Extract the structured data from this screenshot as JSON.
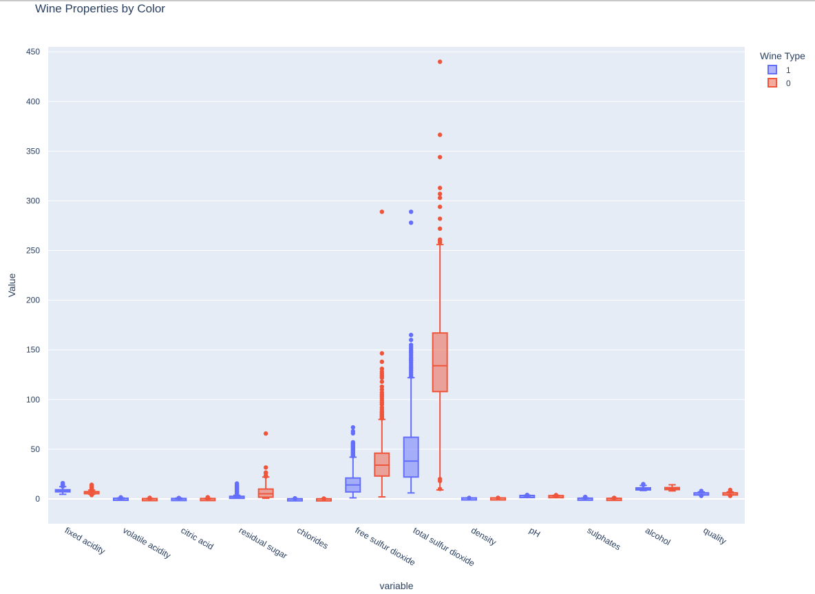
{
  "chart_data": {
    "type": "box",
    "title": "Wine Properties by Color",
    "xlabel": "variable",
    "ylabel": "Value",
    "ylim": [
      -25,
      455
    ],
    "yticks": [
      0,
      50,
      100,
      150,
      200,
      250,
      300,
      350,
      400,
      450
    ],
    "grid": true,
    "legend": {
      "title": "Wine Type",
      "placement": "top-right"
    },
    "categories": [
      "fixed acidity",
      "volatile acidity",
      "citric acid",
      "residual sugar",
      "chlorides",
      "free sulfur dioxide",
      "total sulfur dioxide",
      "density",
      "pH",
      "sulphates",
      "alcohol",
      "quality"
    ],
    "series": [
      {
        "name": "1",
        "color": "#636efa",
        "boxes": [
          {
            "low": 4.6,
            "q1": 7.1,
            "median": 7.9,
            "q3": 9.2,
            "high": 12.3,
            "outliers": [
              12.5,
              13,
              13.5,
              14,
              15,
              15.9
            ]
          },
          {
            "low": 0.12,
            "q1": 0.39,
            "median": 0.52,
            "q3": 0.64,
            "high": 1.0,
            "outliers": [
              1.2,
              1.6
            ]
          },
          {
            "low": 0,
            "q1": 0.09,
            "median": 0.26,
            "q3": 0.42,
            "high": 0.79,
            "outliers": [
              1.0
            ]
          },
          {
            "low": 0.9,
            "q1": 1.9,
            "median": 2.2,
            "q3": 2.6,
            "high": 3.6,
            "outliers": [
              4,
              5,
              6,
              7,
              8,
              9,
              10,
              11,
              12,
              13,
              14,
              15.5
            ]
          },
          {
            "low": 0.04,
            "q1": 0.07,
            "median": 0.08,
            "q3": 0.09,
            "high": 0.12,
            "outliers": [
              0.3,
              0.45,
              0.61
            ]
          },
          {
            "low": 1,
            "q1": 7,
            "median": 14,
            "q3": 21,
            "high": 42,
            "outliers": [
              43,
              44,
              45,
              46,
              47,
              48,
              49,
              50,
              51,
              52,
              53,
              54,
              55,
              56,
              57,
              66,
              68,
              72
            ]
          },
          {
            "low": 6,
            "q1": 22,
            "median": 38,
            "q3": 62,
            "high": 122,
            "outliers": [
              123,
              125,
              127,
              129,
              131,
              133,
              135,
              137,
              139,
              141,
              143,
              145,
              147,
              149,
              151,
              153,
              155,
              160,
              165,
              278,
              289
            ]
          },
          {
            "low": 0.99,
            "q1": 0.996,
            "median": 0.997,
            "q3": 0.998,
            "high": 1.0,
            "outliers": [
              1.003
            ]
          },
          {
            "low": 2.9,
            "q1": 3.2,
            "median": 3.31,
            "q3": 3.4,
            "high": 3.7,
            "outliers": [
              2.74,
              4.01
            ]
          },
          {
            "low": 0.33,
            "q1": 0.55,
            "median": 0.62,
            "q3": 0.73,
            "high": 1.0,
            "outliers": [
              1.2,
              1.5,
              2.0
            ]
          },
          {
            "low": 8.4,
            "q1": 9.5,
            "median": 10.2,
            "q3": 11.1,
            "high": 13.5,
            "outliers": [
              14,
              14.9
            ]
          },
          {
            "low": 4,
            "q1": 5,
            "median": 6,
            "q3": 6,
            "high": 7,
            "outliers": [
              3,
              8
            ]
          }
        ]
      },
      {
        "name": "0",
        "color": "#ef553b",
        "boxes": [
          {
            "low": 4.7,
            "q1": 6.3,
            "median": 6.8,
            "q3": 7.3,
            "high": 8.8,
            "outliers": [
              3.8,
              4.2,
              9,
              9.5,
              10,
              10.5,
              11,
              11.8,
              12.5,
              13.4,
              14.2
            ]
          },
          {
            "low": 0.08,
            "q1": 0.21,
            "median": 0.26,
            "q3": 0.32,
            "high": 0.49,
            "outliers": [
              0.6,
              0.8,
              1.1
            ]
          },
          {
            "low": 0.1,
            "q1": 0.27,
            "median": 0.32,
            "q3": 0.39,
            "high": 0.56,
            "outliers": [
              0,
              0.7,
              1.0,
              1.66
            ]
          },
          {
            "low": 0.6,
            "q1": 1.7,
            "median": 5.2,
            "q3": 9.9,
            "high": 22,
            "outliers": [
              22.6,
              23.5,
              26,
              26.5,
              31.6,
              65.8
            ]
          },
          {
            "low": 0.01,
            "q1": 0.036,
            "median": 0.043,
            "q3": 0.05,
            "high": 0.07,
            "outliers": [
              0.1,
              0.2,
              0.35
            ]
          },
          {
            "low": 2,
            "q1": 23,
            "median": 34,
            "q3": 46,
            "high": 80,
            "outliers": [
              81,
              82,
              83,
              84,
              85,
              86,
              87,
              88,
              90,
              92,
              95,
              97,
              99,
              101,
              103,
              105,
              107,
              110,
              113,
              118,
              122,
              124,
              126,
              128,
              131,
              138,
              146.5,
              289
            ]
          },
          {
            "low": 9,
            "q1": 108,
            "median": 134,
            "q3": 167,
            "high": 256,
            "outliers": [
              10,
              18,
              20,
              258,
              260,
              261,
              272,
              282,
              294,
              303,
              307,
              313,
              344,
              366.5,
              440
            ]
          },
          {
            "low": 0.987,
            "q1": 0.992,
            "median": 0.994,
            "q3": 0.996,
            "high": 1.0,
            "outliers": [
              1.01,
              1.039
            ]
          },
          {
            "low": 2.79,
            "q1": 3.09,
            "median": 3.18,
            "q3": 3.28,
            "high": 3.57,
            "outliers": [
              2.72,
              3.7,
              3.82
            ]
          },
          {
            "low": 0.22,
            "q1": 0.41,
            "median": 0.47,
            "q3": 0.55,
            "high": 0.76,
            "outliers": [
              0.8,
              0.9,
              1.08
            ]
          },
          {
            "low": 8,
            "q1": 9.5,
            "median": 10.4,
            "q3": 11.4,
            "high": 14.2,
            "outliers": []
          },
          {
            "low": 4,
            "q1": 5,
            "median": 6,
            "q3": 6,
            "high": 7,
            "outliers": [
              3,
              8,
              9
            ]
          }
        ]
      }
    ]
  }
}
